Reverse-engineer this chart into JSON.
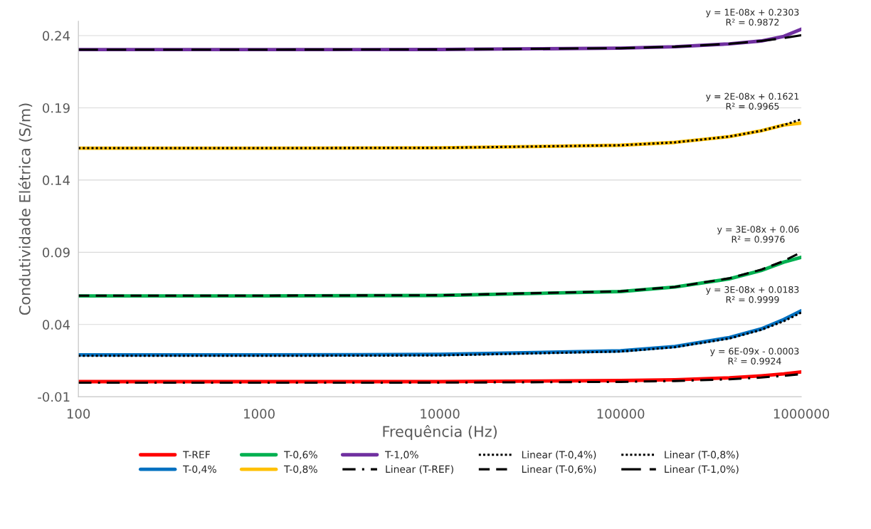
{
  "chart_data": {
    "type": "line",
    "xlabel": "Frequência (Hz)",
    "ylabel": "Condutividade Elétrica (S/m)",
    "log": "x",
    "xlim": [
      100,
      1000000
    ],
    "xticks": [
      100,
      1000,
      10000,
      100000,
      1000000
    ],
    "ylim": [
      -0.01,
      0.25
    ],
    "yticks": [
      -0.01,
      0.04,
      0.09,
      0.14,
      0.19,
      0.24
    ],
    "grid": "y",
    "legend": "bottom",
    "series": [
      {
        "name": "T-REF",
        "color": "#ff0000",
        "x": [
          100,
          1000,
          10000,
          100000,
          200000,
          400000,
          600000,
          800000,
          1000000
        ],
        "values": [
          0.0005,
          0.0005,
          0.0005,
          0.0012,
          0.0018,
          0.0031,
          0.0045,
          0.0058,
          0.0072
        ]
      },
      {
        "name": "T-0,4%",
        "color": "#0070c0",
        "x": [
          100,
          1000,
          10000,
          100000,
          200000,
          400000,
          600000,
          800000,
          1000000
        ],
        "values": [
          0.019,
          0.019,
          0.0193,
          0.0218,
          0.0248,
          0.031,
          0.037,
          0.0435,
          0.0495
        ]
      },
      {
        "name": "T-0,6%",
        "color": "#00b050",
        "x": [
          100,
          1000,
          10000,
          100000,
          200000,
          400000,
          600000,
          800000,
          1000000
        ],
        "values": [
          0.0598,
          0.0598,
          0.0601,
          0.0628,
          0.066,
          0.0716,
          0.0774,
          0.0832,
          0.0865
        ]
      },
      {
        "name": "T-0,8%",
        "color": "#ffc000",
        "x": [
          100,
          1000,
          10000,
          100000,
          200000,
          400000,
          600000,
          800000,
          1000000
        ],
        "values": [
          0.1621,
          0.1621,
          0.1623,
          0.1641,
          0.1661,
          0.1701,
          0.1741,
          0.1781,
          0.1795
        ]
      },
      {
        "name": "T-1,0%",
        "color": "#7030a0",
        "x": [
          100,
          1000,
          10000,
          100000,
          200000,
          400000,
          600000,
          800000,
          1000000
        ],
        "values": [
          0.2303,
          0.2303,
          0.2304,
          0.2313,
          0.2323,
          0.2343,
          0.2363,
          0.2395,
          0.2445
        ]
      },
      {
        "name": "Linear (T-REF)",
        "color": "#000000",
        "line_style": "dashdot",
        "x": [
          100,
          1000,
          10000,
          100000,
          200000,
          400000,
          600000,
          800000,
          1000000
        ],
        "values": [
          -0.0003,
          -0.0003,
          -0.0002,
          0.0003,
          0.0009,
          0.0021,
          0.0033,
          0.0045,
          0.0057
        ]
      },
      {
        "name": "Linear (T-0,4%)",
        "color": "#000000",
        "line_style": "dotted",
        "x": [
          100,
          1000,
          10000,
          100000,
          200000,
          400000,
          600000,
          800000,
          1000000
        ],
        "values": [
          0.0183,
          0.0183,
          0.0186,
          0.0213,
          0.0243,
          0.0303,
          0.0363,
          0.0423,
          0.0483
        ]
      },
      {
        "name": "Linear (T-0,6%)",
        "color": "#000000",
        "line_style": "dashed",
        "x": [
          100,
          1000,
          10000,
          100000,
          200000,
          400000,
          600000,
          800000,
          1000000
        ],
        "values": [
          0.06,
          0.06,
          0.0603,
          0.063,
          0.066,
          0.072,
          0.078,
          0.084,
          0.09
        ]
      },
      {
        "name": "Linear (T-0,8%)",
        "color": "#000000",
        "line_style": "dotted",
        "x": [
          100,
          1000,
          10000,
          100000,
          200000,
          400000,
          600000,
          800000,
          1000000
        ],
        "values": [
          0.1621,
          0.1621,
          0.1623,
          0.1641,
          0.1661,
          0.1701,
          0.1741,
          0.1781,
          0.1821
        ]
      },
      {
        "name": "Linear (T-1,0%)",
        "color": "#000000",
        "line_style": "longdash",
        "x": [
          100,
          1000,
          10000,
          100000,
          200000,
          400000,
          600000,
          800000,
          1000000
        ],
        "values": [
          0.2303,
          0.2303,
          0.2304,
          0.2313,
          0.2323,
          0.2343,
          0.2363,
          0.2383,
          0.2403
        ]
      }
    ],
    "annotations": [
      "y = 1E-08x + 0.2303\nR² = 0.9872",
      "y = 2E-08x + 0.1621\nR² = 0.9965",
      "y = 3E-08x + 0.06\nR² = 0.9976",
      "y = 3E-08x + 0.0183\nR² = 0.9999",
      "y = 6E-09x - 0.0003\nR² = 0.9924"
    ]
  }
}
